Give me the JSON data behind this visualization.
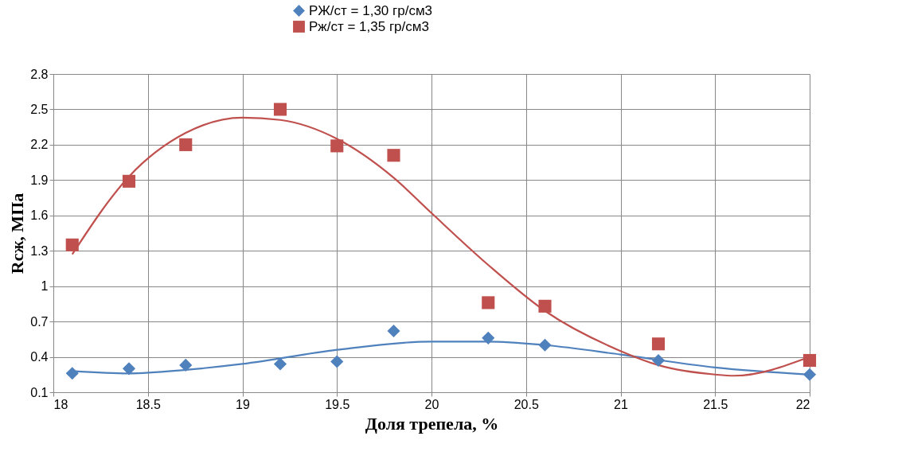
{
  "chart_data": {
    "type": "scatter",
    "xlabel": "Доля трепела, %",
    "ylabel": "Rсж, МПа",
    "xlim": [
      18,
      22
    ],
    "xticks": [
      18,
      18.5,
      19,
      19.5,
      20,
      20.5,
      21,
      21.5,
      22
    ],
    "ylim": [
      0.1,
      2.8
    ],
    "yticks": [
      0.1,
      0.4,
      0.7,
      1,
      1.3,
      1.6,
      1.9,
      2.2,
      2.5,
      2.8
    ],
    "grid": true,
    "legend": "top",
    "series": [
      {
        "name": "РЖ/ст = 1,30 гр/см3",
        "marker": "diamond",
        "color": "#4f81bd",
        "x": [
          18.1,
          18.4,
          18.7,
          19.2,
          19.5,
          19.8,
          20.3,
          20.6,
          21.2,
          22.0
        ],
        "values": [
          0.26,
          0.3,
          0.33,
          0.34,
          0.36,
          0.62,
          0.56,
          0.5,
          0.37,
          0.25
        ]
      },
      {
        "name": "Рж/ст = 1,35 гр/см3",
        "marker": "square",
        "color": "#c0504d",
        "x": [
          18.1,
          18.4,
          18.7,
          19.2,
          19.5,
          19.8,
          20.3,
          20.6,
          21.2,
          22.0
        ],
        "values": [
          1.35,
          1.89,
          2.2,
          2.5,
          2.19,
          2.11,
          0.86,
          0.83,
          0.51,
          0.37
        ]
      },
      {
        "type": "line",
        "color": "#4f81bd",
        "x": [
          18.1,
          18.4,
          18.7,
          19.0,
          19.5,
          20.0,
          20.3,
          20.6,
          21.0,
          21.5,
          22.0
        ],
        "values": [
          0.28,
          0.26,
          0.29,
          0.34,
          0.46,
          0.53,
          0.53,
          0.5,
          0.42,
          0.31,
          0.25
        ]
      },
      {
        "type": "line",
        "color": "#c0504d",
        "x": [
          18.1,
          18.4,
          18.7,
          19.0,
          19.2,
          19.5,
          19.8,
          20.0,
          20.3,
          20.6,
          21.0,
          21.2,
          21.5,
          21.6,
          22.0
        ],
        "values": [
          1.27,
          1.93,
          2.3,
          2.43,
          2.41,
          2.25,
          1.92,
          1.62,
          1.18,
          0.79,
          0.45,
          0.33,
          0.25,
          0.24,
          0.4
        ]
      }
    ]
  }
}
